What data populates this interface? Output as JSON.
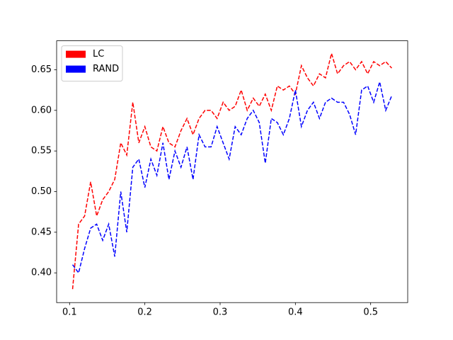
{
  "chart_data": {
    "type": "line",
    "x": [
      0.104,
      0.112,
      0.12,
      0.128,
      0.136,
      0.144,
      0.152,
      0.16,
      0.168,
      0.176,
      0.184,
      0.192,
      0.2,
      0.208,
      0.216,
      0.224,
      0.232,
      0.24,
      0.248,
      0.256,
      0.264,
      0.272,
      0.28,
      0.288,
      0.296,
      0.304,
      0.312,
      0.32,
      0.328,
      0.336,
      0.344,
      0.352,
      0.36,
      0.368,
      0.376,
      0.384,
      0.392,
      0.4,
      0.408,
      0.416,
      0.424,
      0.432,
      0.44,
      0.448,
      0.456,
      0.464,
      0.472,
      0.48,
      0.488,
      0.496,
      0.504,
      0.512,
      0.52,
      0.528
    ],
    "series": [
      {
        "name": "LC",
        "color": "#ff0000",
        "values": [
          0.38,
          0.46,
          0.47,
          0.512,
          0.47,
          0.49,
          0.5,
          0.515,
          0.56,
          0.545,
          0.61,
          0.56,
          0.58,
          0.555,
          0.55,
          0.58,
          0.56,
          0.555,
          0.575,
          0.59,
          0.57,
          0.59,
          0.6,
          0.6,
          0.59,
          0.61,
          0.6,
          0.605,
          0.625,
          0.6,
          0.615,
          0.605,
          0.62,
          0.6,
          0.63,
          0.625,
          0.63,
          0.62,
          0.655,
          0.64,
          0.63,
          0.645,
          0.64,
          0.67,
          0.645,
          0.655,
          0.66,
          0.65,
          0.66,
          0.645,
          0.66,
          0.655,
          0.66,
          0.652
        ]
      },
      {
        "name": "RAND",
        "color": "#0000ff",
        "values": [
          0.41,
          0.4,
          0.43,
          0.455,
          0.46,
          0.44,
          0.46,
          0.42,
          0.5,
          0.45,
          0.53,
          0.54,
          0.505,
          0.54,
          0.52,
          0.56,
          0.515,
          0.55,
          0.53,
          0.555,
          0.515,
          0.57,
          0.555,
          0.555,
          0.58,
          0.56,
          0.54,
          0.58,
          0.57,
          0.59,
          0.6,
          0.585,
          0.535,
          0.59,
          0.585,
          0.57,
          0.59,
          0.625,
          0.58,
          0.6,
          0.61,
          0.59,
          0.61,
          0.615,
          0.61,
          0.61,
          0.595,
          0.57,
          0.625,
          0.63,
          0.61,
          0.635,
          0.6,
          0.618
        ]
      }
    ],
    "xlim": [
      0.0828,
      0.5492
    ],
    "ylim": [
      0.3634,
      0.6856
    ],
    "xticks": [
      0.1,
      0.2,
      0.3,
      0.4,
      0.5
    ],
    "yticks": [
      {
        "value": 0.4,
        "label": "0.40"
      },
      0.45,
      {
        "value": 0.5,
        "label": "0.50"
      },
      0.55,
      {
        "value": 0.6,
        "label": "0.60"
      },
      0.65
    ],
    "line_style": "dashed",
    "legend": "upper left"
  }
}
